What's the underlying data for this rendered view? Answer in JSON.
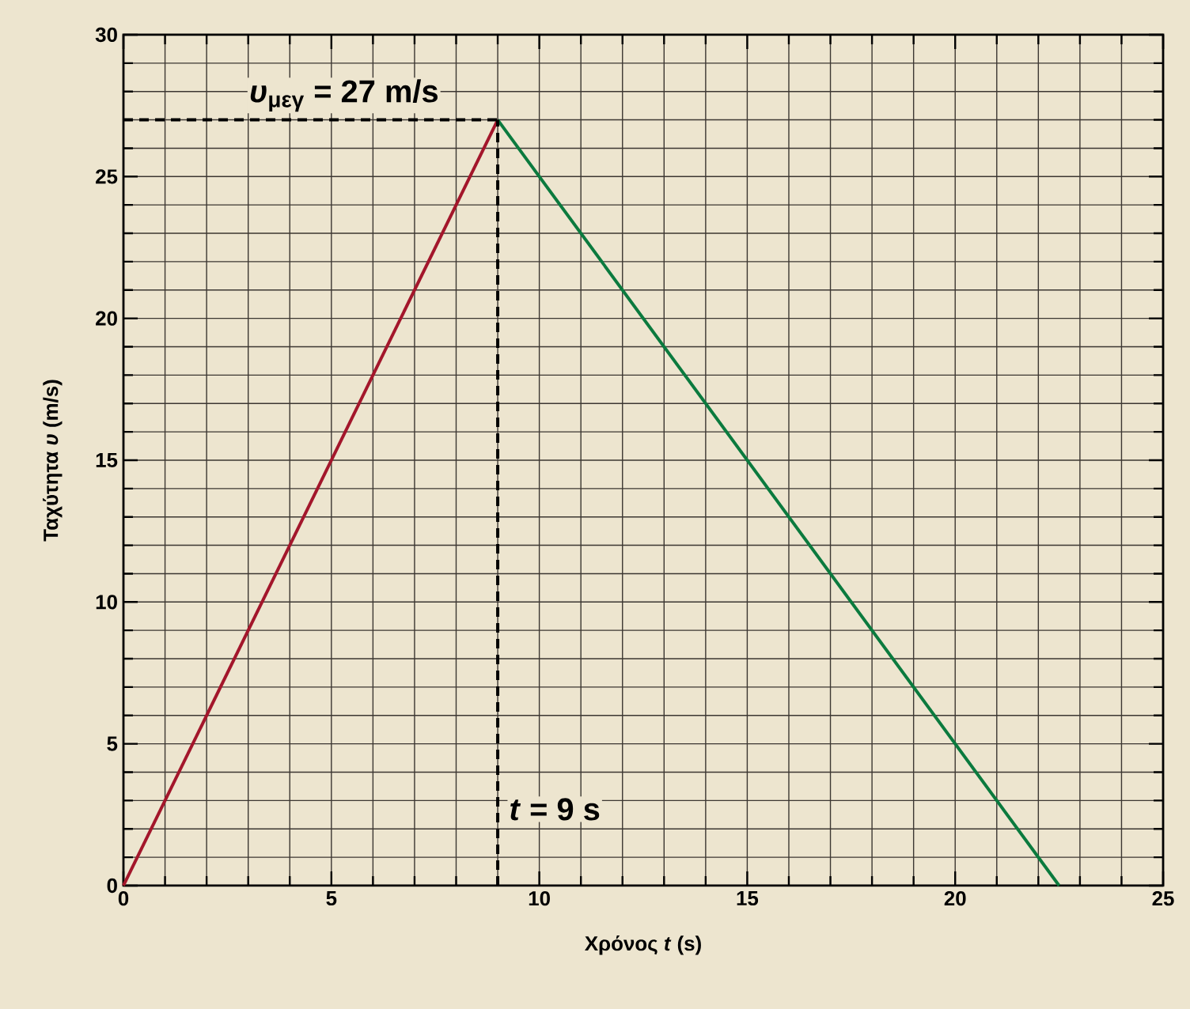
{
  "chart_data": {
    "type": "line",
    "xlabel": "Χρόνος *t* (s)",
    "ylabel": "Ταχύτητα *υ* (m/s)",
    "xlim": [
      0,
      25
    ],
    "ylim": [
      0,
      30
    ],
    "xticks": [
      0,
      5,
      10,
      15,
      20,
      25
    ],
    "yticks": [
      0,
      5,
      10,
      15,
      20,
      25,
      30
    ],
    "grid": true,
    "series": [
      {
        "x": [
          0,
          9
        ],
        "values": [
          0,
          27
        ],
        "color": "#a3162b"
      },
      {
        "x": [
          9,
          22.5
        ],
        "values": [
          27,
          0
        ],
        "color": "#0b7a3e"
      }
    ],
    "ref_lines": [
      {
        "axis": "x",
        "value": 9,
        "color": "#000000",
        "line_style": "dashed"
      },
      {
        "axis": "y",
        "value": 27,
        "color": "#000000",
        "line_style": "dashed"
      }
    ],
    "annotations": [
      {
        "text": "*υ*$_{μεγ}$ = 27 m/s",
        "x": 9,
        "y": 27
      },
      {
        "text": "*t* = 9 s",
        "x": 9,
        "y": 0
      }
    ]
  }
}
